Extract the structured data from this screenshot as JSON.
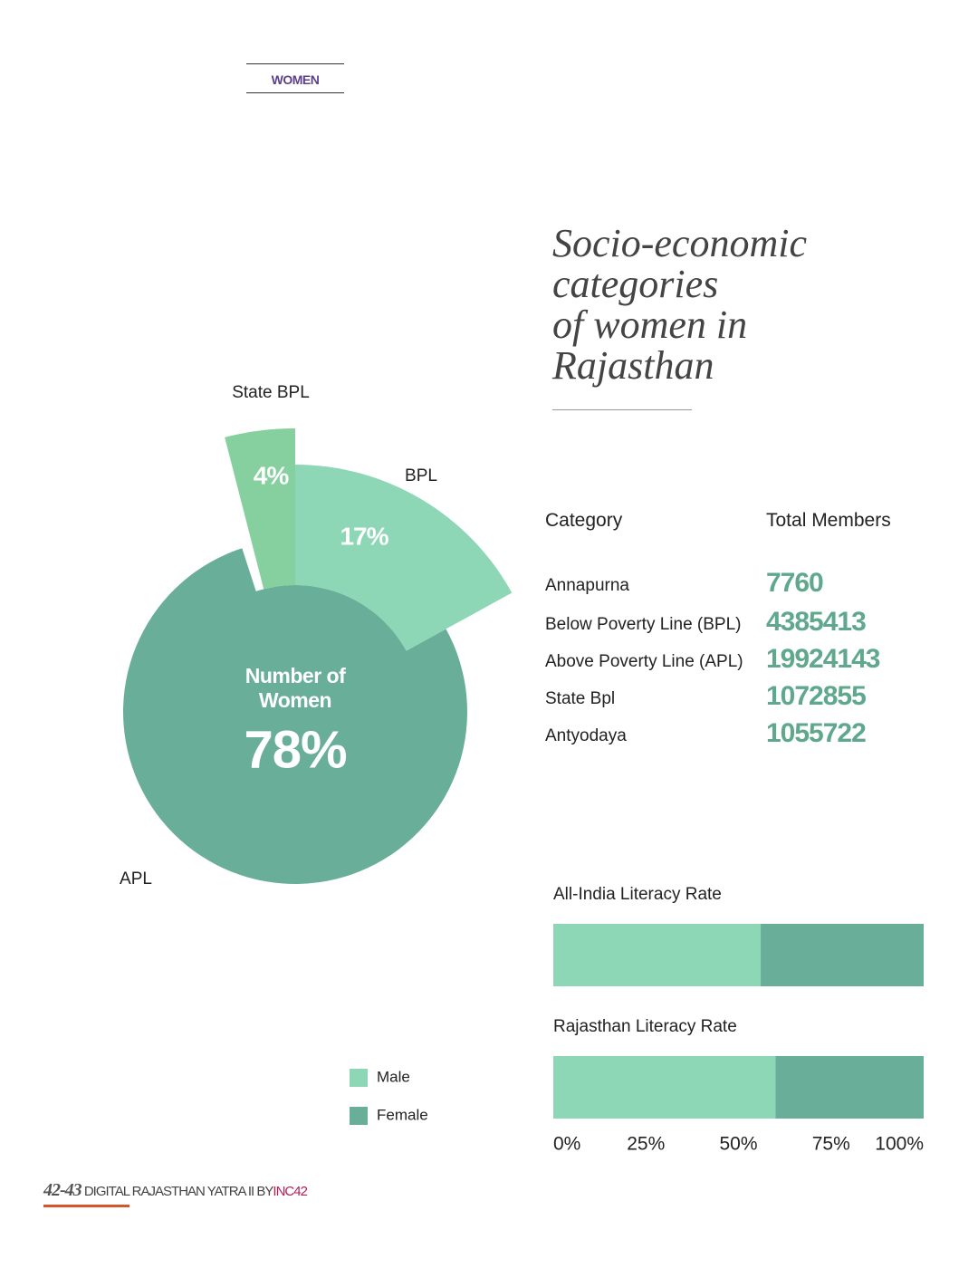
{
  "header": {
    "section": "WOMEN"
  },
  "title_lines": [
    "Socio-economic",
    "categories",
    "of women in",
    "Rajasthan"
  ],
  "table": {
    "columns": [
      "Category",
      "Total Members"
    ],
    "rows": [
      [
        "Annapurna",
        7760
      ],
      [
        "Below Poverty Line (BPL)",
        4385413
      ],
      [
        "Above Poverty Line (APL)",
        19924143
      ],
      [
        "State Bpl",
        1072855
      ],
      [
        "Antyodaya",
        1055722
      ]
    ]
  },
  "chart_data": [
    {
      "type": "pie",
      "center_label": "Number of Women",
      "categories": [
        "State BPL",
        "BPL",
        "APL"
      ],
      "values": [
        4,
        17,
        78
      ],
      "value_labels": [
        "4%",
        "17%",
        "78%"
      ],
      "colors": [
        "#85d09e",
        "#8dd7b7",
        "#68ae98"
      ]
    },
    {
      "type": "bar",
      "orientation": "horizontal",
      "stacked": true,
      "categories": [
        "All-India Literacy Rate",
        "Rajasthan Literacy Rate"
      ],
      "series": [
        {
          "name": "Male",
          "color": "#8dd7b7",
          "values": [
            56,
            60
          ]
        },
        {
          "name": "Female",
          "color": "#68ae98",
          "values": [
            44,
            40
          ]
        }
      ],
      "xlim": [
        0,
        100
      ],
      "xticks": [
        {
          "value": 0,
          "label": "0%"
        },
        {
          "value": 25,
          "label": "25%"
        },
        {
          "value": 50,
          "label": "50%"
        },
        {
          "value": 75,
          "label": "75%"
        },
        {
          "value": 100,
          "label": "100%"
        }
      ]
    }
  ],
  "footer": {
    "pages": "42-43",
    "text": "DIGITAL RAJASTHAN YATRA II BY",
    "brand": "INC42"
  }
}
